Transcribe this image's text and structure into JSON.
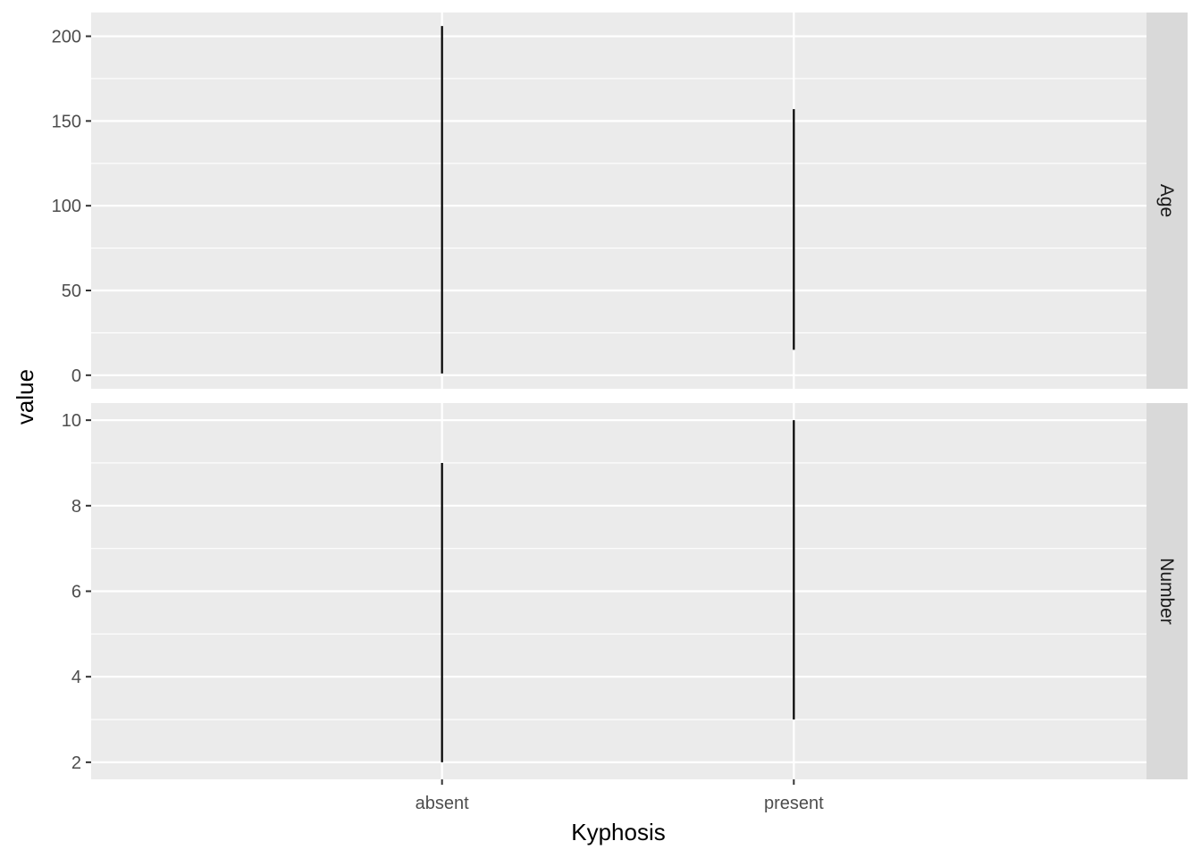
{
  "chart_data": {
    "type": "linerange",
    "xlabel": "Kyphosis",
    "ylabel": "value",
    "categories": [
      "absent",
      "present"
    ],
    "facet_layout": "rows",
    "free_y_scales": true,
    "grid": true,
    "legend": "none",
    "colors": {
      "panel_bg": "#EBEBEB",
      "grid_major": "#FFFFFF",
      "strip_bg": "#D9D9D9",
      "range": "#000000"
    },
    "facets": [
      {
        "label": "Age",
        "ylim": [
          -8,
          214
        ],
        "yticks": [
          0,
          50,
          100,
          150,
          200
        ],
        "ranges": [
          {
            "category": "absent",
            "ymin": 1,
            "ymax": 206
          },
          {
            "category": "present",
            "ymin": 15,
            "ymax": 157
          }
        ]
      },
      {
        "label": "Number",
        "ylim": [
          1.6,
          10.4
        ],
        "yticks": [
          2,
          4,
          6,
          8,
          10
        ],
        "ranges": [
          {
            "category": "absent",
            "ymin": 2,
            "ymax": 9
          },
          {
            "category": "present",
            "ymin": 3,
            "ymax": 10
          }
        ]
      }
    ]
  }
}
